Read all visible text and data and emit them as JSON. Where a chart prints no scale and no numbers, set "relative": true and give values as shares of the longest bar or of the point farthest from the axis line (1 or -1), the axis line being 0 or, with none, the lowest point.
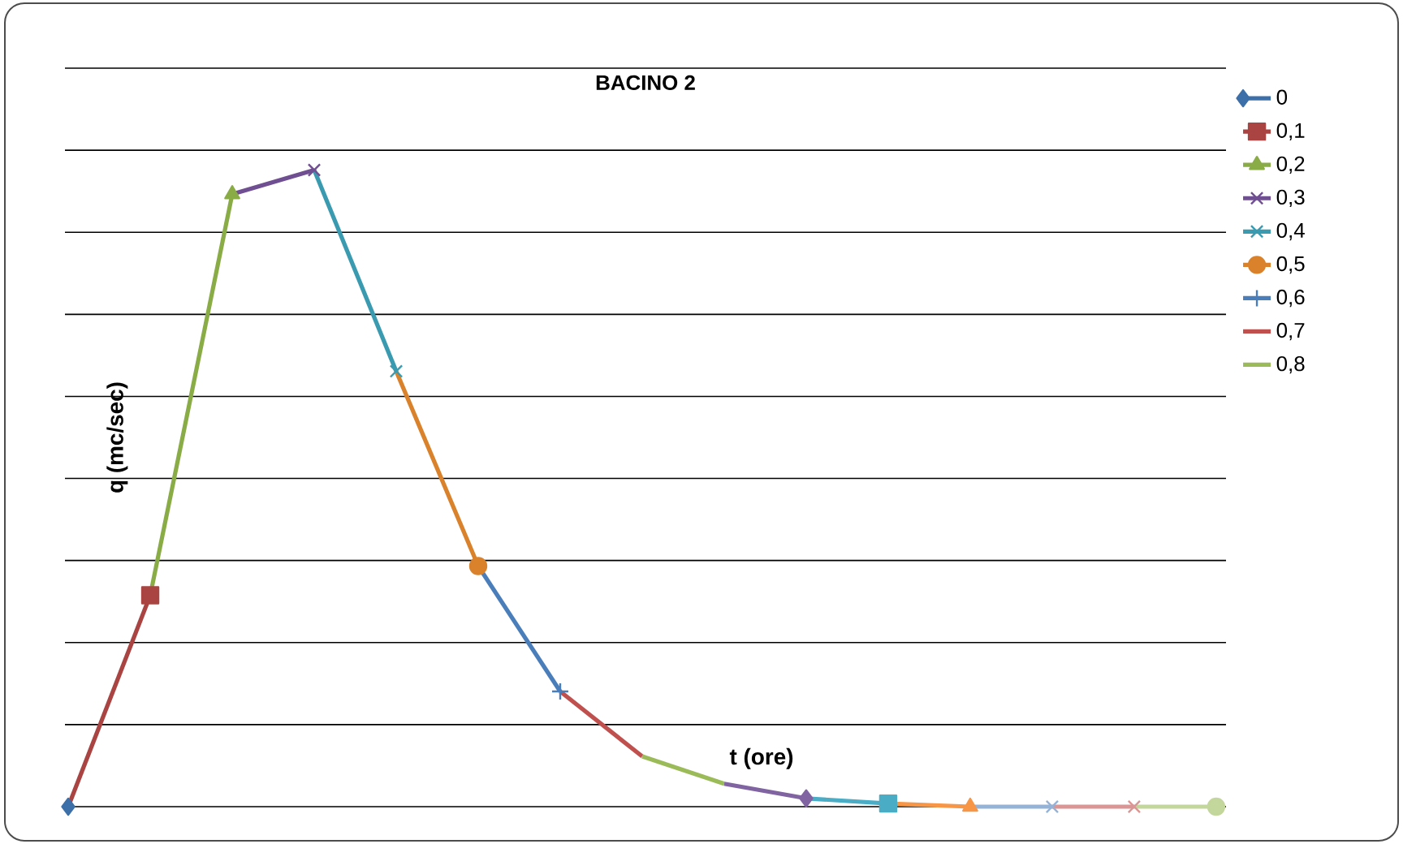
{
  "chart_data": {
    "type": "line",
    "title": "BACINO 2",
    "xlabel": "t (ore)",
    "ylabel": "q (mc/sec)",
    "relative": true,
    "grid": "y",
    "legend": "right",
    "line_style": "solid",
    "categories": [
      null,
      null,
      null,
      null,
      null,
      null,
      null,
      null,
      null,
      null,
      null,
      null,
      null,
      null,
      null
    ],
    "series": [
      {
        "name": "0",
        "color": "#3d6fa8",
        "marker": "diamond",
        "values": [
          0,
          null,
          null,
          null,
          null,
          null,
          null,
          null,
          null,
          null,
          null,
          null,
          null,
          null,
          null
        ]
      },
      {
        "name": "0,1",
        "color": "#a94442",
        "marker": "square",
        "values": [
          0,
          0.332,
          null,
          null,
          null,
          null,
          null,
          null,
          null,
          null,
          null,
          null,
          null,
          null,
          null
        ]
      },
      {
        "name": "0,2",
        "color": "#8aac46",
        "marker": "triangle",
        "values": [
          null,
          0.332,
          0.962,
          null,
          null,
          null,
          null,
          null,
          null,
          null,
          null,
          null,
          null,
          null,
          null
        ]
      },
      {
        "name": "0,3",
        "color": "#6f4e91",
        "marker": "cross",
        "values": [
          null,
          null,
          0.962,
          1,
          null,
          null,
          null,
          null,
          null,
          null,
          null,
          null,
          null,
          null,
          null
        ]
      },
      {
        "name": "0,4",
        "color": "#3a9bb0",
        "marker": "cross",
        "values": [
          null,
          null,
          null,
          1,
          0.684,
          null,
          null,
          null,
          null,
          null,
          null,
          null,
          null,
          null,
          null
        ]
      },
      {
        "name": "0,5",
        "color": "#d9822b",
        "marker": "circle",
        "values": [
          null,
          null,
          null,
          null,
          0.684,
          0.378,
          null,
          null,
          null,
          null,
          null,
          null,
          null,
          null,
          null
        ]
      },
      {
        "name": "0,6",
        "color": "#4a7ebb",
        "marker": "plus",
        "values": [
          null,
          null,
          null,
          null,
          null,
          0.378,
          0.181,
          null,
          null,
          null,
          null,
          null,
          null,
          null,
          null
        ]
      },
      {
        "name": "0,7",
        "color": "#c0504d",
        "marker": "none",
        "values": [
          null,
          null,
          null,
          null,
          null,
          null,
          0.181,
          0.079,
          null,
          null,
          null,
          null,
          null,
          null,
          null
        ]
      },
      {
        "name": "0,8",
        "color": "#9bbb59",
        "marker": "none",
        "values": [
          null,
          null,
          null,
          null,
          null,
          null,
          null,
          0.079,
          0.036,
          null,
          null,
          null,
          null,
          null,
          null
        ]
      },
      {
        "color": "#8064a2",
        "marker": "diamond",
        "values": [
          null,
          null,
          null,
          null,
          null,
          null,
          null,
          null,
          0.036,
          0.013,
          null,
          null,
          null,
          null,
          null
        ]
      },
      {
        "color": "#4bacc6",
        "marker": "square",
        "values": [
          null,
          null,
          null,
          null,
          null,
          null,
          null,
          null,
          null,
          0.013,
          0.005,
          null,
          null,
          null,
          null
        ]
      },
      {
        "color": "#f79646",
        "marker": "triangle",
        "values": [
          null,
          null,
          null,
          null,
          null,
          null,
          null,
          null,
          null,
          null,
          0.005,
          0,
          null,
          null,
          null
        ]
      },
      {
        "color": "#95b3d7",
        "marker": "cross",
        "values": [
          null,
          null,
          null,
          null,
          null,
          null,
          null,
          null,
          null,
          null,
          null,
          0,
          0,
          null,
          null
        ]
      },
      {
        "color": "#d99694",
        "marker": "cross",
        "values": [
          null,
          null,
          null,
          null,
          null,
          null,
          null,
          null,
          null,
          null,
          null,
          null,
          0,
          0,
          null
        ]
      },
      {
        "color": "#c3d69b",
        "marker": "circle",
        "values": [
          null,
          null,
          null,
          null,
          null,
          null,
          null,
          null,
          null,
          null,
          null,
          null,
          null,
          0,
          0
        ]
      }
    ]
  }
}
